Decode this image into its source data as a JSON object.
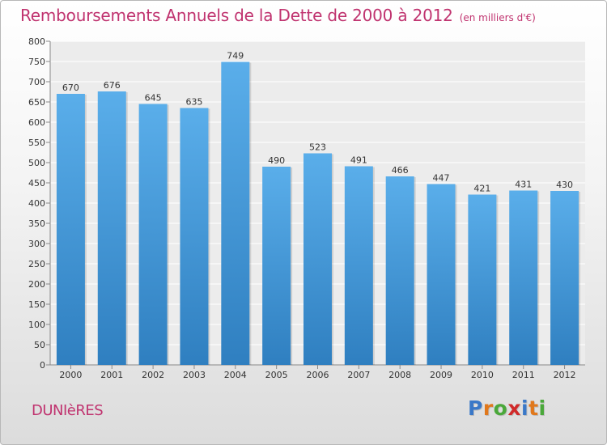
{
  "title": "Remboursements Annuels de la Dette de 2000 à 2012",
  "subtitle": "(en milliers d'€)",
  "location": "DUNIèRES",
  "logo": {
    "letters": [
      "P",
      "r",
      "o",
      "x",
      "i",
      "t",
      "i"
    ],
    "colors": [
      "#3a78c8",
      "#e0781c",
      "#4aa83a",
      "#d02a2a",
      "#3a78c8",
      "#e0781c",
      "#4aa83a"
    ]
  },
  "colors": {
    "bar": "#4b9fe0",
    "bar_dark": "#2f7fc0",
    "title": "#c0336f"
  },
  "chart_data": {
    "type": "bar",
    "categories": [
      "2000",
      "2001",
      "2002",
      "2003",
      "2004",
      "2005",
      "2006",
      "2007",
      "2008",
      "2009",
      "2010",
      "2011",
      "2012"
    ],
    "values": [
      670,
      676,
      645,
      635,
      749,
      490,
      523,
      491,
      466,
      447,
      421,
      431,
      430
    ],
    "title": "Remboursements Annuels de la Dette de 2000 à 2012",
    "xlabel": "",
    "ylabel": "",
    "ylim": [
      0,
      800
    ],
    "yticks": [
      0,
      50,
      100,
      150,
      200,
      250,
      300,
      350,
      400,
      450,
      500,
      550,
      600,
      650,
      700,
      750,
      800
    ],
    "grid": true,
    "legend": "none"
  }
}
